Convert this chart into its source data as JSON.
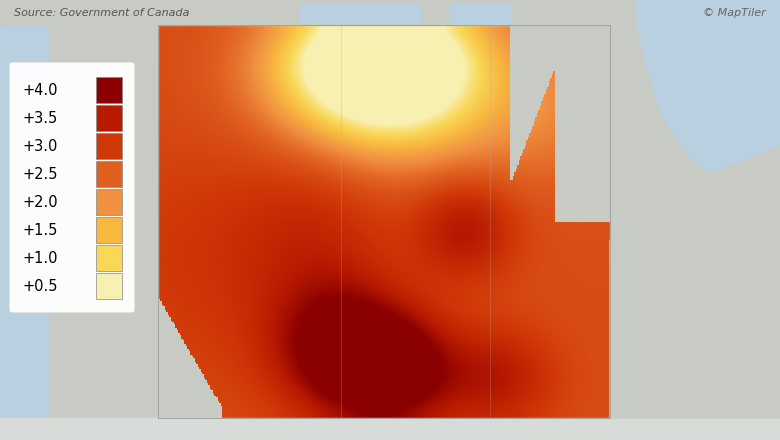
{
  "background_color": "#b8d0e0",
  "land_color": "#c8cac4",
  "source_text": "Source: Government of Canada",
  "copyright_text": "© MapTiler",
  "legend_labels": [
    "+4.0",
    "+3.5",
    "+3.0",
    "+2.5",
    "+2.0",
    "+1.5",
    "+1.0",
    "+0.5"
  ],
  "legend_colors": [
    "#8b0000",
    "#b81a00",
    "#d03808",
    "#e06020",
    "#f09040",
    "#f8b840",
    "#f8d858",
    "#f8f0b0"
  ],
  "colormap_colors": [
    "#f8f0b0",
    "#f8d858",
    "#f8b840",
    "#f09040",
    "#e06020",
    "#d03808",
    "#b81a00",
    "#8b0000"
  ],
  "figsize": [
    7.8,
    4.4
  ],
  "dpi": 100
}
